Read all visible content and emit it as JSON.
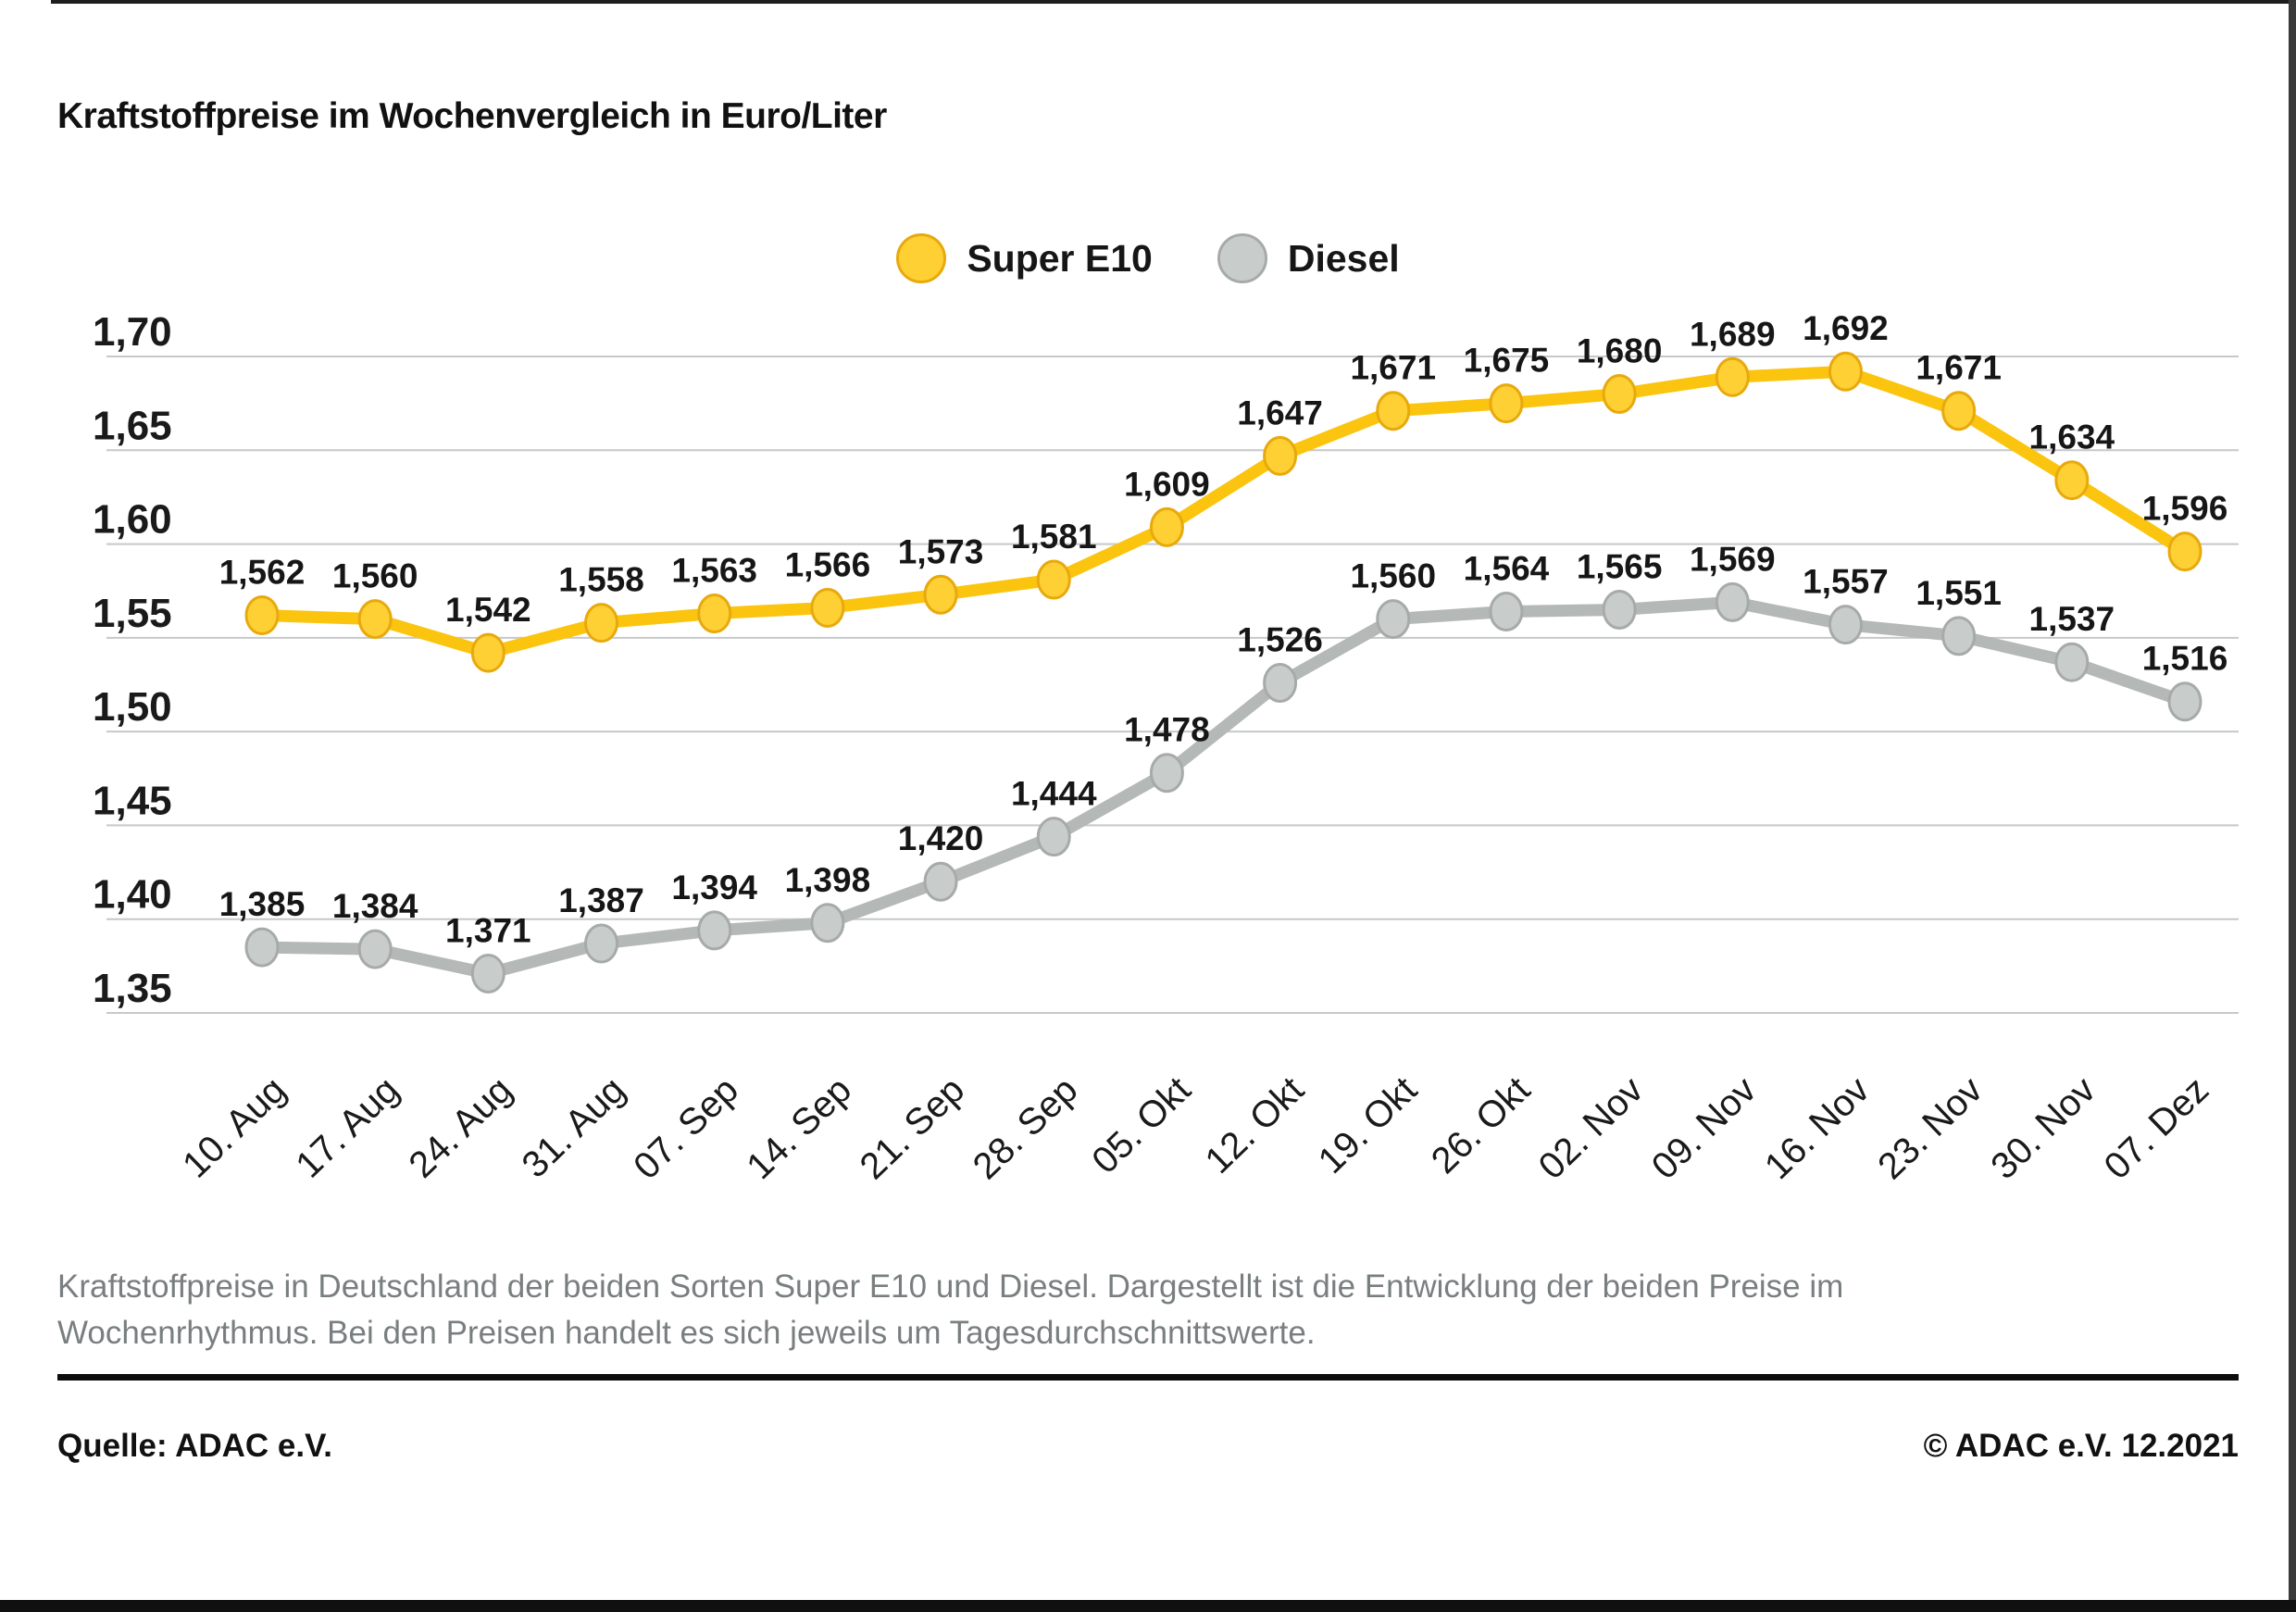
{
  "header": {
    "title": "Kraftstoffpreise im Wochenvergleich in Euro/Liter"
  },
  "chart_data": {
    "type": "line",
    "title": "Kraftstoffpreise im Wochenvergleich in Euro/Liter",
    "categories": [
      "10. Aug",
      "17. Aug",
      "24. Aug",
      "31. Aug",
      "07. Sep",
      "14. Sep",
      "21. Sep",
      "28. Sep",
      "05. Okt",
      "12. Okt",
      "19. Okt",
      "26. Okt",
      "02. Nov",
      "09. Nov",
      "16. Nov",
      "23. Nov",
      "30. Nov",
      "07. Dez"
    ],
    "series": [
      {
        "name": "Super E10",
        "color": "#FBC40E",
        "marker_fill": "#FED034",
        "marker_stroke": "#E8A90D",
        "values": [
          1.562,
          1.56,
          1.542,
          1.558,
          1.563,
          1.566,
          1.573,
          1.581,
          1.609,
          1.647,
          1.671,
          1.675,
          1.68,
          1.689,
          1.692,
          1.671,
          1.634,
          1.596
        ],
        "labels": [
          "1,562",
          "1,560",
          "1,542",
          "1,558",
          "1,563",
          "1,566",
          "1,573",
          "1,581",
          "1,609",
          "1,647",
          "1,671",
          "1,675",
          "1,680",
          "1,689",
          "1,692",
          "1,671",
          "1,634",
          "1,596"
        ]
      },
      {
        "name": "Diesel",
        "color": "#B4B8B7",
        "marker_fill": "#C8CCCB",
        "marker_stroke": "#A6ABAA",
        "values": [
          1.385,
          1.384,
          1.371,
          1.387,
          1.394,
          1.398,
          1.42,
          1.444,
          1.478,
          1.526,
          1.56,
          1.564,
          1.565,
          1.569,
          1.557,
          1.551,
          1.537,
          1.516
        ],
        "labels": [
          "1,385",
          "1,384",
          "1,371",
          "1,387",
          "1,394",
          "1,398",
          "1,420",
          "1,444",
          "1,478",
          "1,526",
          "1,560",
          "1,564",
          "1,565",
          "1,569",
          "1,557",
          "1,551",
          "1,537",
          "1,516"
        ]
      }
    ],
    "yticks": {
      "values": [
        1.7,
        1.65,
        1.6,
        1.55,
        1.5,
        1.45,
        1.4,
        1.35
      ],
      "labels": [
        "1,70",
        "1,65",
        "1,60",
        "1,55",
        "1,50",
        "1,45",
        "1,40",
        "1,35"
      ]
    },
    "ylim": [
      1.35,
      1.7
    ],
    "xlabel": "",
    "ylabel": "Euro/Liter",
    "grid": true,
    "gridline_color": "#C6C8C9",
    "legend_position": "top-center",
    "axis_text_color": "#1a1a1a"
  },
  "caption": {
    "text": "Kraftstoffpreise in Deutschland der beiden Sorten Super E10 und Diesel. Dargestellt ist die Entwicklung der beiden Preise im Wochenrhythmus. Bei den Preisen handelt es sich jeweils um Tagesdurchschnittswerte."
  },
  "footer": {
    "source": "Quelle: ADAC e.V.",
    "copyright": "© ADAC e.V. 12.2021"
  }
}
